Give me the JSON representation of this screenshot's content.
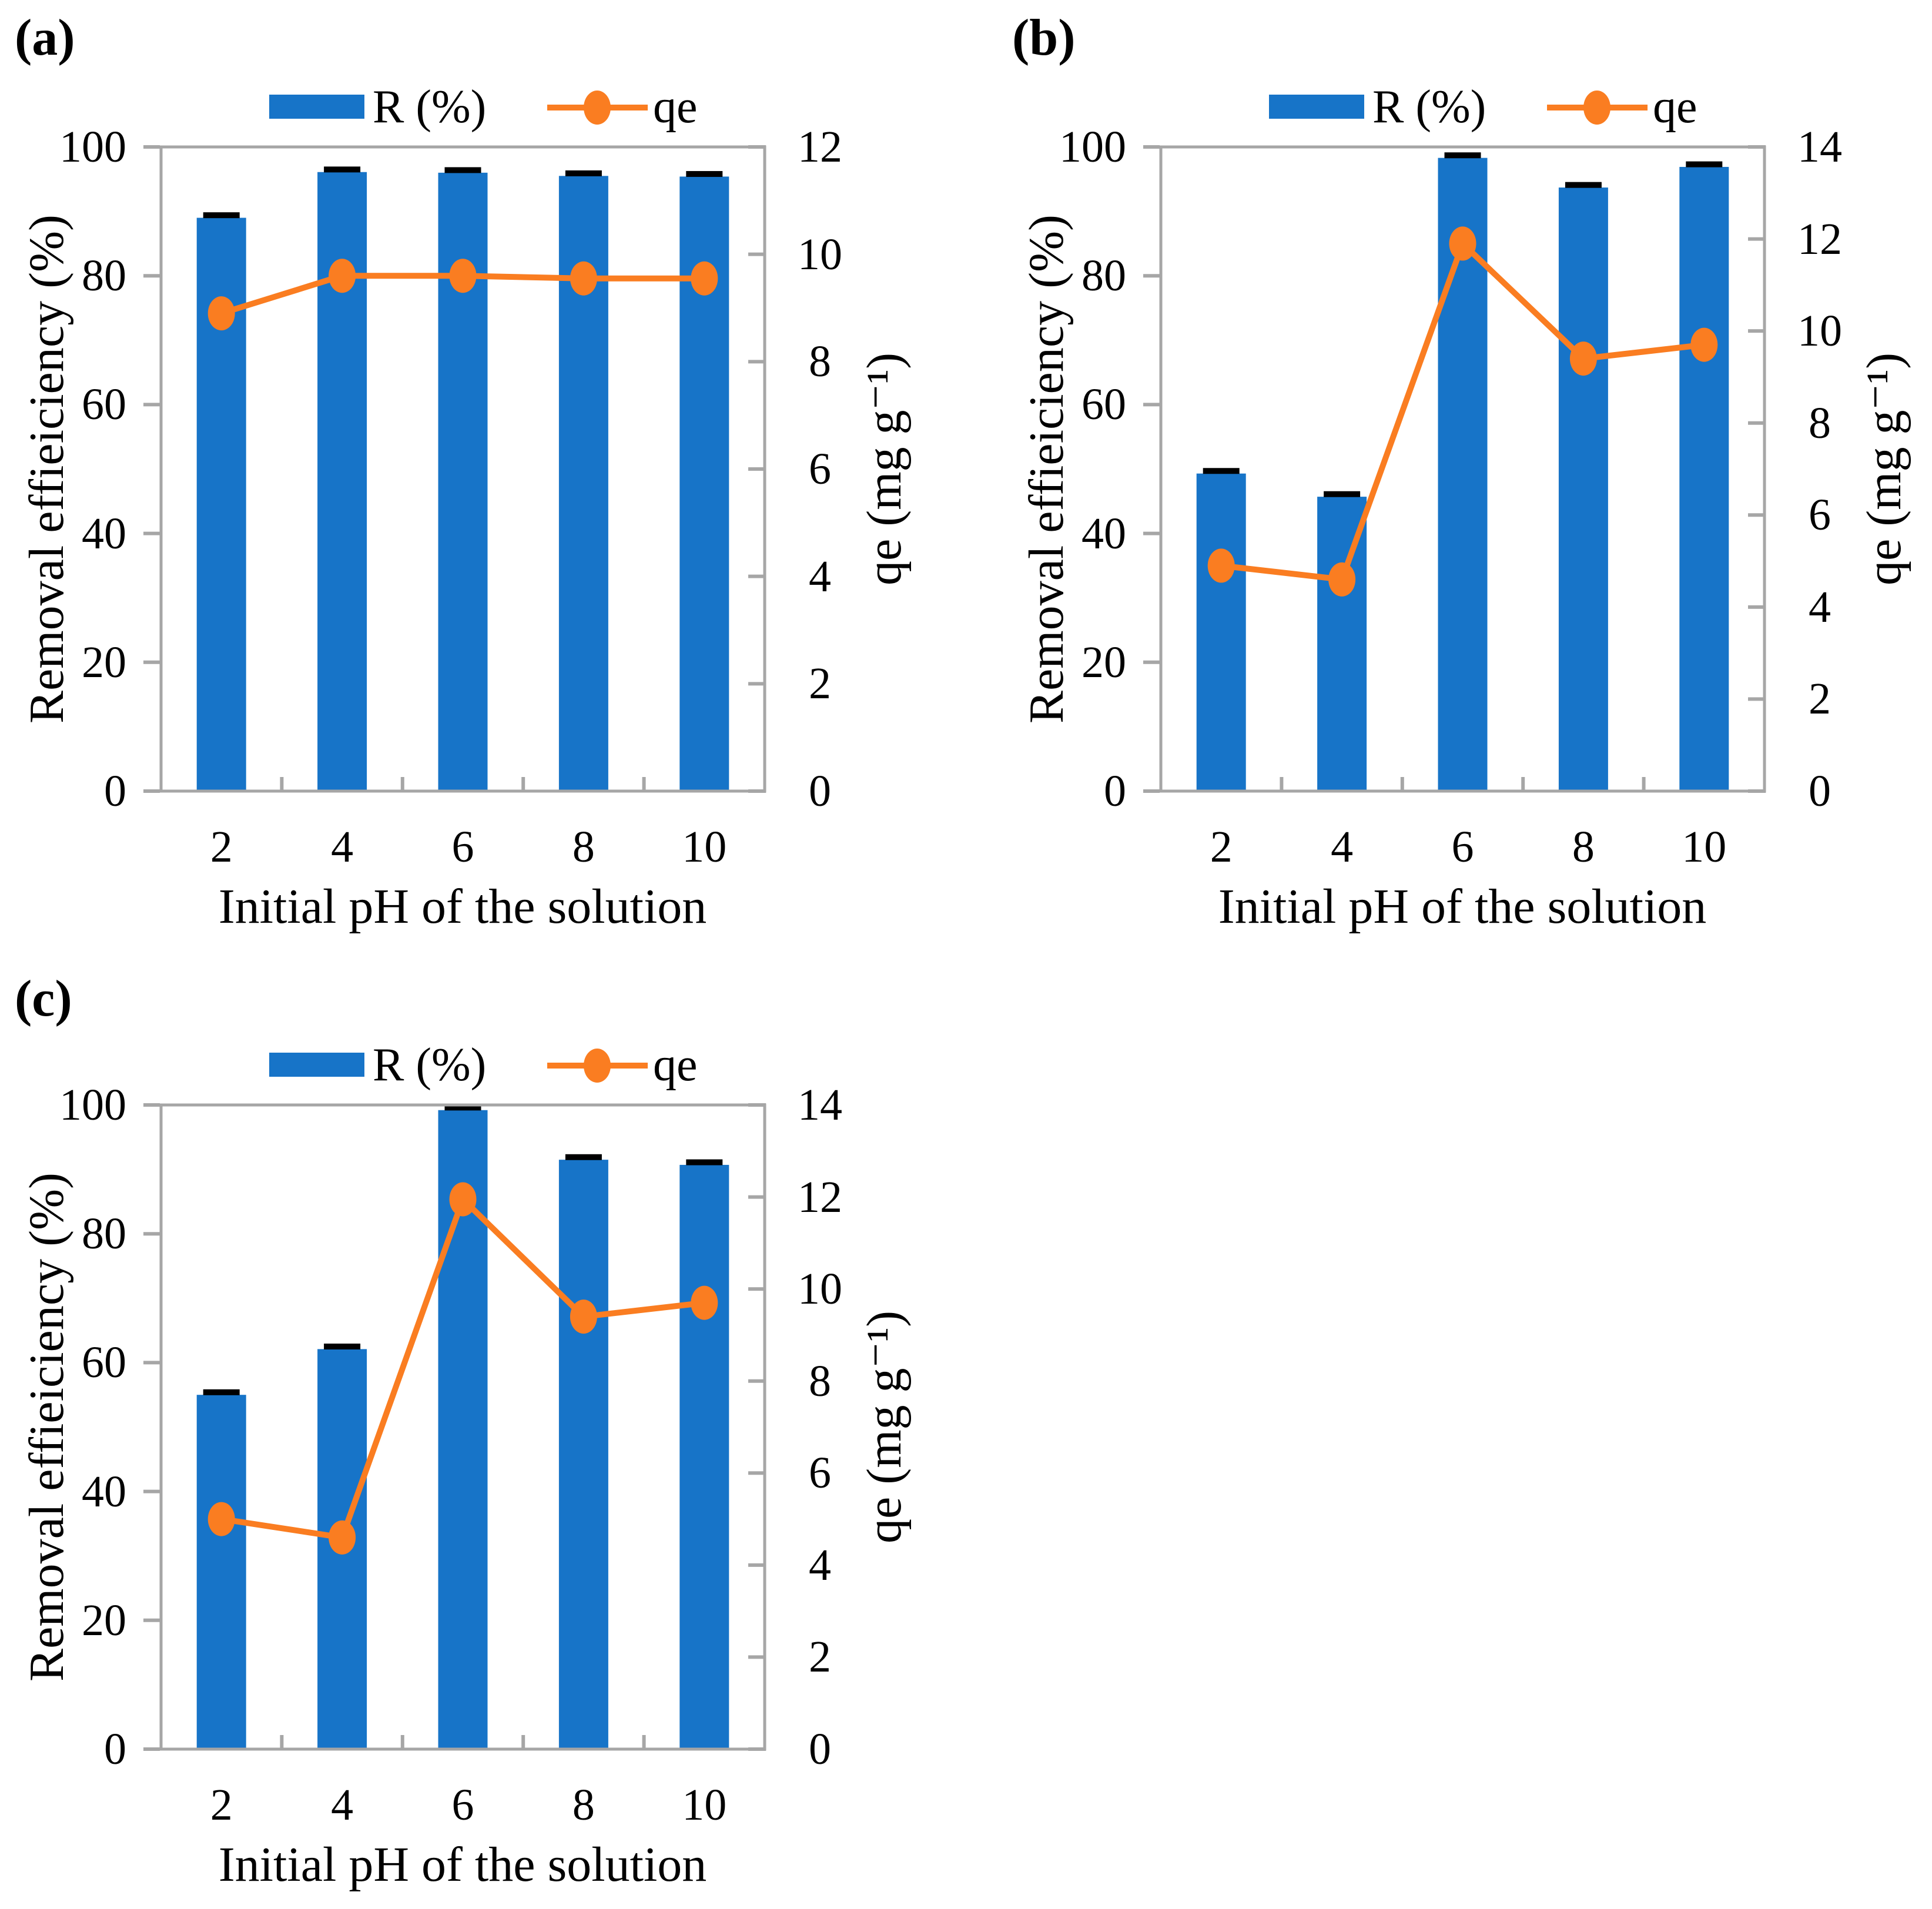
{
  "colors": {
    "bar": "#1774C8",
    "line": "#FA7D21",
    "error_bar": "#000000",
    "frame": "#A6A6A6",
    "text": "#000000"
  },
  "chart_data": [
    {
      "panel_label": "(a)",
      "type": "bar+line",
      "categories": [
        "2",
        "4",
        "6",
        "8",
        "10"
      ],
      "xlabel": "Initial pH of the solution",
      "ylabel_left": "Removal effieiciency (%)",
      "ylabel_right": "qe (mg g⁻¹)",
      "ylim_left": [
        0,
        100
      ],
      "ylim_right": [
        0,
        12
      ],
      "left_ticks": [
        0,
        20,
        40,
        60,
        80,
        100
      ],
      "right_ticks": [
        0,
        2,
        4,
        6,
        8,
        10,
        12
      ],
      "grid": false,
      "legend_position": "top",
      "series": [
        {
          "name": "R (%)",
          "type": "bar",
          "axis": "left",
          "values": [
            89.0,
            96.1,
            96.0,
            95.5,
            95.4
          ],
          "errors": [
            0.4,
            0.4,
            0.4,
            0.4,
            0.4
          ]
        },
        {
          "name": "qe",
          "type": "line",
          "axis": "right",
          "values": [
            8.9,
            9.6,
            9.6,
            9.55,
            9.55
          ]
        }
      ]
    },
    {
      "panel_label": "(b)",
      "type": "bar+line",
      "categories": [
        "2",
        "4",
        "6",
        "8",
        "10"
      ],
      "xlabel": "Initial pH of the solution",
      "ylabel_left": "Removal effieiciency (%)",
      "ylabel_right": "qe (mg g⁻¹)",
      "ylim_left": [
        0,
        100
      ],
      "ylim_right": [
        0,
        14
      ],
      "left_ticks": [
        0,
        20,
        40,
        60,
        80,
        100
      ],
      "right_ticks": [
        0,
        2,
        4,
        6,
        8,
        10,
        12,
        14
      ],
      "grid": false,
      "legend_position": "top",
      "series": [
        {
          "name": "R (%)",
          "type": "bar",
          "axis": "left",
          "values": [
            49.3,
            45.7,
            98.3,
            93.7,
            96.9
          ],
          "errors": [
            0.4,
            0.4,
            0.4,
            0.4,
            0.4
          ]
        },
        {
          "name": "qe",
          "type": "line",
          "axis": "right",
          "values": [
            4.9,
            4.6,
            11.9,
            9.4,
            9.7
          ]
        }
      ]
    },
    {
      "panel_label": "(c)",
      "type": "bar+line",
      "categories": [
        "2",
        "4",
        "6",
        "8",
        "10"
      ],
      "xlabel": "Initial pH of the solution",
      "ylabel_left": "Removal effieiciency (%)",
      "ylabel_right": "qe (mg g⁻¹)",
      "ylim_left": [
        0,
        100
      ],
      "ylim_right": [
        0,
        14
      ],
      "left_ticks": [
        0,
        20,
        40,
        60,
        80,
        100
      ],
      "right_ticks": [
        0,
        2,
        4,
        6,
        8,
        10,
        12,
        14
      ],
      "grid": false,
      "legend_position": "top",
      "series": [
        {
          "name": "R (%)",
          "type": "bar",
          "axis": "left",
          "values": [
            55.0,
            62.1,
            99.2,
            91.5,
            90.7
          ],
          "errors": [
            0.4,
            0.4,
            0.4,
            0.4,
            0.4
          ]
        },
        {
          "name": "qe",
          "type": "line",
          "axis": "right",
          "values": [
            5.0,
            4.6,
            11.95,
            9.4,
            9.7
          ]
        }
      ]
    }
  ]
}
